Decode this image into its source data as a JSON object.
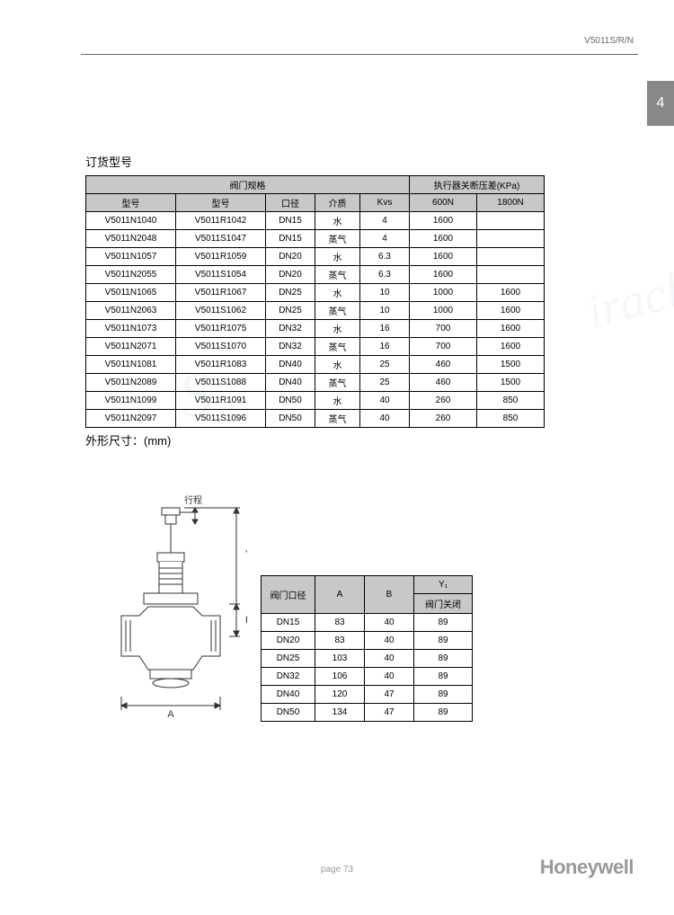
{
  "header": {
    "code": "V5011S/R/N",
    "tab": "4"
  },
  "section1": {
    "title": "订货型号"
  },
  "section2": {
    "title": "外形尺寸：(mm)"
  },
  "table1": {
    "group_headers": {
      "spec": "阀门规格",
      "pressure": "执行器关断压差(KPa)"
    },
    "headers": [
      "型号",
      "型号",
      "口径",
      "介质",
      "Kvs",
      "600N",
      "1800N"
    ],
    "rows": [
      [
        "V5011N1040",
        "V5011R1042",
        "DN15",
        "水",
        "4",
        "1600",
        ""
      ],
      [
        "V5011N2048",
        "V5011S1047",
        "DN15",
        "蒸气",
        "4",
        "1600",
        ""
      ],
      [
        "V5011N1057",
        "V5011R1059",
        "DN20",
        "水",
        "6.3",
        "1600",
        ""
      ],
      [
        "V5011N2055",
        "V5011S1054",
        "DN20",
        "蒸气",
        "6.3",
        "1600",
        ""
      ],
      [
        "V5011N1065",
        "V5011R1067",
        "DN25",
        "水",
        "10",
        "1000",
        "1600"
      ],
      [
        "V5011N2063",
        "V5011S1062",
        "DN25",
        "蒸气",
        "10",
        "1000",
        "1600"
      ],
      [
        "V5011N1073",
        "V5011R1075",
        "DN32",
        "水",
        "16",
        "700",
        "1600"
      ],
      [
        "V5011N2071",
        "V5011S1070",
        "DN32",
        "蒸气",
        "16",
        "700",
        "1600"
      ],
      [
        "V5011N1081",
        "V5011R1083",
        "DN40",
        "水",
        "25",
        "460",
        "1500"
      ],
      [
        "V5011N2089",
        "V5011S1088",
        "DN40",
        "蒸气",
        "25",
        "460",
        "1500"
      ],
      [
        "V5011N1099",
        "V5011R1091",
        "DN50",
        "水",
        "40",
        "260",
        "850"
      ],
      [
        "V5011N2097",
        "V5011S1096",
        "DN50",
        "蒸气",
        "40",
        "260",
        "850"
      ]
    ]
  },
  "table2": {
    "headers": [
      "阀门口径",
      "A",
      "B",
      "Y₁"
    ],
    "sub_header": "阀门关闭",
    "rows": [
      [
        "DN15",
        "83",
        "40",
        "89"
      ],
      [
        "DN20",
        "83",
        "40",
        "89"
      ],
      [
        "DN25",
        "103",
        "40",
        "89"
      ],
      [
        "DN32",
        "106",
        "40",
        "89"
      ],
      [
        "DN40",
        "120",
        "47",
        "89"
      ],
      [
        "DN50",
        "134",
        "47",
        "89"
      ]
    ]
  },
  "diagram": {
    "labels": {
      "travel": "行程",
      "A": "A",
      "B": "B",
      "Y1": "Y₁"
    },
    "colors": {
      "line": "#333333"
    }
  },
  "footer": {
    "page": "page  73",
    "brand": "Honeywell"
  }
}
